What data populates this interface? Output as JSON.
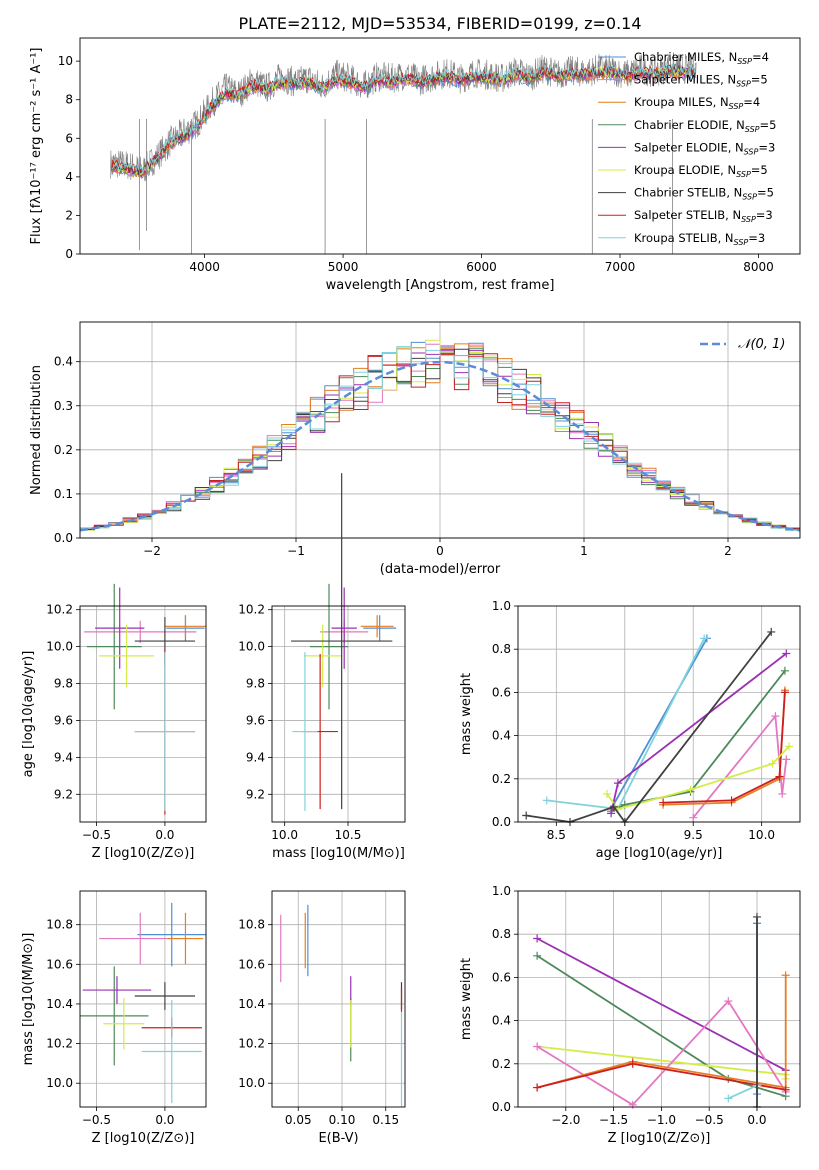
{
  "figure": {
    "title": "PLATE=2112, MJD=53534, FIBERID=0199, z=0.14"
  },
  "models": [
    {
      "imf": "Chabrier",
      "lib": "MILES",
      "nssp": "4",
      "color": "#4f8fd6"
    },
    {
      "imf": "Salpeter",
      "lib": "MILES",
      "nssp": "5",
      "color": "#e377c2"
    },
    {
      "imf": "Kroupa",
      "lib": "MILES",
      "nssp": "4",
      "color": "#e67e22"
    },
    {
      "imf": "Chabrier",
      "lib": "ELODIE",
      "nssp": "5",
      "color": "#4d8a5a"
    },
    {
      "imf": "Salpeter",
      "lib": "ELODIE",
      "nssp": "3",
      "color": "#9b30b3"
    },
    {
      "imf": "Kroupa",
      "lib": "ELODIE",
      "nssp": "5",
      "color": "#d4ec4a"
    },
    {
      "imf": "Chabrier",
      "lib": "STELIB",
      "nssp": "5",
      "color": "#404040"
    },
    {
      "imf": "Salpeter",
      "lib": "STELIB",
      "nssp": "3",
      "color": "#cc1f1f"
    },
    {
      "imf": "Kroupa",
      "lib": "STELIB",
      "nssp": "3",
      "color": "#7fd3dd"
    }
  ],
  "legend_entries": [
    "Chabrier MILES, N",
    "Salpeter MILES, N",
    "Kroupa MILES, N",
    "Chabrier ELODIE, N",
    "Salpeter ELODIE, N",
    "Kroupa ELODIE, N",
    "Chabrier STELIB, N",
    "Salpeter STELIB, N",
    "Kroupa STELIB, N"
  ],
  "legend_sub": "SSP",
  "chart_data": [
    {
      "id": "spectrum",
      "type": "line",
      "xlabel": "wavelength [Angstrom, rest frame]",
      "ylabel": "Flux [fλ10⁻¹⁷ erg cm⁻² s⁻¹ A⁻¹]",
      "xlim": [
        3100,
        8300
      ],
      "ylim": [
        0,
        11.2
      ],
      "xticks": [
        4000,
        5000,
        6000,
        7000,
        8000
      ],
      "yticks": [
        0,
        2,
        4,
        6,
        8,
        10
      ],
      "grid": false,
      "legend": "right",
      "x": [
        3350,
        3450,
        3550,
        3650,
        3750,
        3850,
        3950,
        4050,
        4150,
        4250,
        4350,
        4450,
        4550,
        4650,
        4750,
        4850,
        4950,
        5050,
        5150,
        5250,
        5350,
        5450,
        5550,
        5650,
        5750,
        5850,
        5950,
        6050,
        6150,
        6250,
        6350,
        6450,
        6550,
        6650,
        6750,
        6850,
        6950,
        7050,
        7150,
        7250,
        7350,
        7450
      ],
      "data_flux": [
        4.7,
        4.6,
        4.3,
        5.0,
        5.8,
        6.3,
        6.8,
        7.8,
        8.6,
        8.3,
        9.0,
        8.6,
        9.2,
        8.9,
        9.1,
        8.7,
        9.3,
        9.1,
        8.7,
        9.2,
        9.1,
        9.3,
        9.0,
        9.2,
        9.4,
        9.1,
        9.4,
        9.3,
        9.1,
        9.5,
        9.2,
        9.6,
        9.3,
        9.5,
        9.4,
        9.6,
        9.5,
        9.3,
        9.6,
        9.4,
        9.7,
        9.6
      ],
      "model_flux": [
        4.5,
        4.4,
        4.2,
        4.9,
        5.7,
        6.1,
        6.6,
        7.6,
        8.3,
        8.2,
        8.7,
        8.5,
        8.9,
        8.8,
        8.9,
        8.6,
        9.0,
        8.9,
        8.6,
        9.0,
        8.9,
        9.1,
        8.9,
        9.0,
        9.2,
        9.0,
        9.2,
        9.1,
        9.0,
        9.3,
        9.1,
        9.4,
        9.2,
        9.3,
        9.3,
        9.4,
        9.4,
        9.2,
        9.4,
        9.3,
        9.5,
        9.4
      ]
    },
    {
      "id": "residuals",
      "type": "line",
      "xlabel": "(data-model)/error",
      "ylabel": "Normed distribution",
      "xlim": [
        -2.5,
        2.5
      ],
      "ylim": [
        0,
        0.49
      ],
      "xticks": [
        -2,
        -1,
        0,
        1,
        2
      ],
      "yticks": [
        0.0,
        0.1,
        0.2,
        0.3,
        0.4
      ],
      "grid": true,
      "legend": "top-right",
      "gaussian_label": "𝒩(0, 1)",
      "gaussian_mean": 0,
      "gaussian_sigma": 1
    },
    {
      "id": "Z-age",
      "type": "errorbar",
      "xlabel": "Z [log10(Z/Z⊙)]",
      "ylabel": "age  [log10(age/yr)]",
      "xlim": [
        -0.62,
        0.3
      ],
      "ylim": [
        9.05,
        10.22
      ],
      "xticks": [
        -0.5,
        0.0
      ],
      "yticks": [
        9.2,
        9.4,
        9.6,
        9.8,
        10.0,
        10.2
      ],
      "grid": true,
      "points": [
        {
          "m": 0,
          "x": 0.15,
          "y": 10.1,
          "xe": 0.14,
          "ye": 0.07
        },
        {
          "m": 1,
          "x": -0.18,
          "y": 10.08,
          "xe": 0.41,
          "ye": 0.06
        },
        {
          "m": 2,
          "x": 0.15,
          "y": 10.11,
          "xe": 0.15,
          "ye": 0.06
        },
        {
          "m": 3,
          "x": -0.37,
          "y": 10.0,
          "xe": 0.2,
          "ye": 0.34
        },
        {
          "m": 4,
          "x": -0.33,
          "y": 10.1,
          "xe": 0.18,
          "ye": 0.22
        },
        {
          "m": 5,
          "x": -0.28,
          "y": 9.95,
          "xe": 0.2,
          "ye": 0.17
        },
        {
          "m": 6,
          "x": 0.0,
          "y": 10.03,
          "xe": 0.22,
          "ye": 0.13
        },
        {
          "m": 7,
          "x": 0.0,
          "y": 9.54,
          "xe": 0.22,
          "ye": 0.45
        },
        {
          "m": 8,
          "x": 0.0,
          "y": 9.54,
          "xe": 0.22,
          "ye": 0.43
        }
      ]
    },
    {
      "id": "mass-age",
      "type": "errorbar",
      "xlabel": "mass [log10(M/M⊙)]",
      "ylabel": "",
      "xlim": [
        9.9,
        10.95
      ],
      "ylim": [
        9.05,
        10.22
      ],
      "xticks": [
        10.0,
        10.5
      ],
      "yticks": [
        9.2,
        9.4,
        9.6,
        9.8,
        10.0,
        10.2
      ],
      "grid": true,
      "points": [
        {
          "m": 0,
          "x": 10.75,
          "y": 10.1,
          "xe": 0.13,
          "ye": 0.07
        },
        {
          "m": 1,
          "x": 10.47,
          "y": 10.08,
          "xe": 0.19,
          "ye": 0.06
        },
        {
          "m": 2,
          "x": 10.73,
          "y": 10.11,
          "xe": 0.13,
          "ye": 0.06
        },
        {
          "m": 3,
          "x": 10.35,
          "y": 10.0,
          "xe": 0.15,
          "ye": 0.34
        },
        {
          "m": 4,
          "x": 10.47,
          "y": 10.1,
          "xe": 0.1,
          "ye": 0.22
        },
        {
          "m": 5,
          "x": 10.3,
          "y": 9.95,
          "xe": 0.15,
          "ye": 0.17
        },
        {
          "m": 6,
          "x": 10.45,
          "y": 10.03,
          "xe": 0.4,
          "ye": 0.91
        },
        {
          "m": 7,
          "x": 10.28,
          "y": 9.54,
          "xe": 0.14,
          "ye": 0.42
        },
        {
          "m": 8,
          "x": 10.16,
          "y": 9.54,
          "xe": 0.1,
          "ye": 0.43
        }
      ]
    },
    {
      "id": "age-weight",
      "type": "line",
      "xlabel": "age  [log10(age/yr)]",
      "ylabel": "mass weight",
      "xlim": [
        8.22,
        10.28
      ],
      "ylim": [
        0,
        1.0
      ],
      "xticks": [
        8.5,
        9.0,
        9.5,
        10.0
      ],
      "yticks": [
        0.0,
        0.2,
        0.4,
        0.6,
        0.8,
        1.0
      ],
      "grid": true,
      "series": [
        {
          "m": 0,
          "x": [
            8.9,
            9.6
          ],
          "y": [
            0.06,
            0.85
          ]
        },
        {
          "m": 8,
          "x": [
            8.43,
            8.95,
            9.58
          ],
          "y": [
            0.1,
            0.06,
            0.85
          ]
        },
        {
          "m": 1,
          "x": [
            9.5,
            10.1,
            10.15,
            10.18
          ],
          "y": [
            0.02,
            0.49,
            0.13,
            0.29
          ]
        },
        {
          "m": 2,
          "x": [
            9.28,
            9.78,
            10.13,
            10.17
          ],
          "y": [
            0.08,
            0.09,
            0.2,
            0.61
          ]
        },
        {
          "m": 7,
          "x": [
            9.28,
            9.78,
            10.13,
            10.17
          ],
          "y": [
            0.09,
            0.1,
            0.21,
            0.6
          ]
        },
        {
          "m": 3,
          "x": [
            8.9,
            9.0,
            9.48,
            10.17
          ],
          "y": [
            0.05,
            0.08,
            0.14,
            0.7
          ]
        },
        {
          "m": 4,
          "x": [
            8.9,
            8.95,
            10.18
          ],
          "y": [
            0.04,
            0.18,
            0.78
          ]
        },
        {
          "m": 5,
          "x": [
            8.87,
            8.95,
            9.48,
            10.08,
            10.2
          ],
          "y": [
            0.13,
            0.06,
            0.15,
            0.27,
            0.35
          ]
        },
        {
          "m": 6,
          "x": [
            8.28,
            8.6,
            8.92,
            9.0,
            10.07
          ],
          "y": [
            0.03,
            0.0,
            0.07,
            0.0,
            0.88
          ]
        }
      ]
    },
    {
      "id": "Z-mass",
      "type": "errorbar",
      "xlabel": "Z [log10(Z/Z⊙)]",
      "ylabel": "mass [log10(M/M⊙)]",
      "xlim": [
        -0.62,
        0.3
      ],
      "ylim": [
        9.88,
        10.97
      ],
      "xticks": [
        -0.5,
        0.0
      ],
      "yticks": [
        10.0,
        10.2,
        10.4,
        10.6,
        10.8
      ],
      "grid": true,
      "points": [
        {
          "m": 0,
          "x": 0.05,
          "y": 10.75,
          "xe": 0.25,
          "ye": 0.16
        },
        {
          "m": 1,
          "x": -0.18,
          "y": 10.73,
          "xe": 0.3,
          "ye": 0.13
        },
        {
          "m": 2,
          "x": 0.15,
          "y": 10.73,
          "xe": 0.13,
          "ye": 0.13
        },
        {
          "m": 3,
          "x": -0.37,
          "y": 10.34,
          "xe": 0.25,
          "ye": 0.25
        },
        {
          "m": 4,
          "x": -0.35,
          "y": 10.47,
          "xe": 0.25,
          "ye": 0.07
        },
        {
          "m": 5,
          "x": -0.3,
          "y": 10.3,
          "xe": 0.15,
          "ye": 0.13
        },
        {
          "m": 6,
          "x": 0.0,
          "y": 10.44,
          "xe": 0.22,
          "ye": 0.07
        },
        {
          "m": 7,
          "x": 0.05,
          "y": 10.28,
          "xe": 0.22,
          "ye": 0.05
        },
        {
          "m": 8,
          "x": 0.05,
          "y": 10.16,
          "xe": 0.22,
          "ye": 0.26
        }
      ]
    },
    {
      "id": "ebv-mass",
      "type": "errorbar",
      "xlabel": "E(B-V)",
      "ylabel": "",
      "xlim": [
        0.02,
        0.172
      ],
      "ylim": [
        9.88,
        10.97
      ],
      "xticks": [
        0.05,
        0.1,
        0.15
      ],
      "yticks": [
        10.0,
        10.2,
        10.4,
        10.6,
        10.8
      ],
      "grid": true,
      "points": [
        {
          "m": 0,
          "x": 0.061,
          "y": 10.72,
          "xe": 0,
          "ye": 0.18
        },
        {
          "m": 1,
          "x": 0.03,
          "y": 10.68,
          "xe": 0,
          "ye": 0.17
        },
        {
          "m": 2,
          "x": 0.058,
          "y": 10.72,
          "xe": 0,
          "ye": 0.14
        },
        {
          "m": 3,
          "x": 0.11,
          "y": 10.27,
          "xe": 0,
          "ye": 0.16
        },
        {
          "m": 4,
          "x": 0.11,
          "y": 10.47,
          "xe": 0,
          "ye": 0.07
        },
        {
          "m": 5,
          "x": 0.11,
          "y": 10.3,
          "xe": 0,
          "ye": 0.12
        },
        {
          "m": 6,
          "x": 0.168,
          "y": 10.44,
          "xe": 0,
          "ye": 0.07
        },
        {
          "m": 7,
          "x": 0.168,
          "y": 10.42,
          "xe": 0,
          "ye": 0.06
        },
        {
          "m": 8,
          "x": 0.168,
          "y": 10.12,
          "xe": 0,
          "ye": 0.24
        }
      ]
    },
    {
      "id": "Z-weight",
      "type": "line",
      "xlabel": "Z [log10(Z/Z⊙)]",
      "ylabel": "mass weight",
      "xlim": [
        -2.5,
        0.45
      ],
      "ylim": [
        0,
        1.0
      ],
      "xticks": [
        -2.0,
        -1.5,
        -1.0,
        -0.5,
        0.0
      ],
      "yticks": [
        0.0,
        0.2,
        0.4,
        0.6,
        0.8,
        1.0
      ],
      "grid": true,
      "series": [
        {
          "m": 4,
          "x": [
            -2.3,
            0.3
          ],
          "y": [
            0.78,
            0.17
          ]
        },
        {
          "m": 3,
          "x": [
            -2.3,
            -0.3,
            0.3
          ],
          "y": [
            0.7,
            0.13,
            0.05
          ]
        },
        {
          "m": 5,
          "x": [
            -2.3,
            0.3,
            0.3
          ],
          "y": [
            0.28,
            0.15,
            0.13
          ]
        },
        {
          "m": 1,
          "x": [
            -2.3,
            -1.3,
            -0.3,
            0.3
          ],
          "y": [
            0.28,
            0.01,
            0.49,
            0.07
          ]
        },
        {
          "m": 2,
          "x": [
            -2.3,
            -1.3,
            0.3,
            0.3
          ],
          "y": [
            0.09,
            0.21,
            0.09,
            0.61
          ]
        },
        {
          "m": 7,
          "x": [
            -2.3,
            -1.3,
            0.3
          ],
          "y": [
            0.09,
            0.2,
            0.08
          ]
        },
        {
          "m": 8,
          "x": [
            -0.3,
            0.0,
            0.0
          ],
          "y": [
            0.04,
            0.1,
            0.85
          ]
        },
        {
          "m": 0,
          "x": [
            0.0,
            0.0
          ],
          "y": [
            0.06,
            0.85
          ]
        },
        {
          "m": 6,
          "x": [
            0.0,
            0.0
          ],
          "y": [
            0.0,
            0.88
          ]
        }
      ]
    }
  ]
}
